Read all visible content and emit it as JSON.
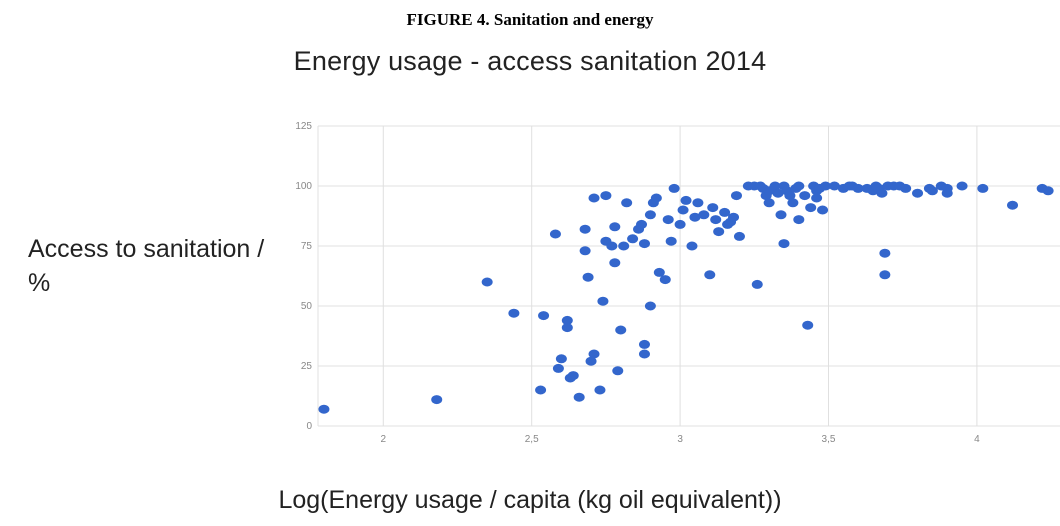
{
  "figure_title": "FIGURE 4. Sanitation and energy",
  "chart_data": {
    "type": "scatter",
    "title": "Energy usage - access sanitation 2014",
    "xlabel": "Log(Energy usage / capita (kg oil equivalent))",
    "ylabel": "Access to sanitation / %",
    "xlim": [
      1.78,
      4.28
    ],
    "ylim": [
      0,
      125
    ],
    "xticks": [
      2,
      2.5,
      3,
      3.5,
      4
    ],
    "xtick_labels": [
      "2",
      "2,5",
      "3",
      "3,5",
      "4"
    ],
    "yticks": [
      0,
      25,
      50,
      75,
      100,
      125
    ],
    "ytick_labels": [
      "0",
      "25",
      "50",
      "75",
      "100",
      "125"
    ],
    "grid": true,
    "legend": "none",
    "point_color": "#3366cc",
    "points": [
      [
        1.8,
        7
      ],
      [
        2.18,
        11
      ],
      [
        2.35,
        60
      ],
      [
        2.44,
        47
      ],
      [
        2.53,
        15
      ],
      [
        2.54,
        46
      ],
      [
        2.58,
        80
      ],
      [
        2.59,
        24
      ],
      [
        2.6,
        28
      ],
      [
        2.62,
        44
      ],
      [
        2.62,
        41
      ],
      [
        2.63,
        20
      ],
      [
        2.64,
        21
      ],
      [
        2.66,
        12
      ],
      [
        2.68,
        82
      ],
      [
        2.68,
        73
      ],
      [
        2.69,
        62
      ],
      [
        2.7,
        27
      ],
      [
        2.71,
        30
      ],
      [
        2.71,
        95
      ],
      [
        2.73,
        15
      ],
      [
        2.74,
        52
      ],
      [
        2.75,
        96
      ],
      [
        2.75,
        77
      ],
      [
        2.77,
        75
      ],
      [
        2.78,
        83
      ],
      [
        2.78,
        68
      ],
      [
        2.79,
        23
      ],
      [
        2.8,
        40
      ],
      [
        2.81,
        75
      ],
      [
        2.82,
        93
      ],
      [
        2.84,
        78
      ],
      [
        2.86,
        82
      ],
      [
        2.87,
        84
      ],
      [
        2.88,
        76
      ],
      [
        2.88,
        34
      ],
      [
        2.88,
        30
      ],
      [
        2.9,
        50
      ],
      [
        2.9,
        88
      ],
      [
        2.91,
        93
      ],
      [
        2.92,
        95
      ],
      [
        2.93,
        64
      ],
      [
        2.95,
        61
      ],
      [
        2.96,
        86
      ],
      [
        2.97,
        77
      ],
      [
        2.98,
        99
      ],
      [
        3.0,
        84
      ],
      [
        3.01,
        90
      ],
      [
        3.02,
        94
      ],
      [
        3.04,
        75
      ],
      [
        3.05,
        87
      ],
      [
        3.06,
        93
      ],
      [
        3.08,
        88
      ],
      [
        3.1,
        63
      ],
      [
        3.11,
        91
      ],
      [
        3.12,
        86
      ],
      [
        3.13,
        81
      ],
      [
        3.15,
        89
      ],
      [
        3.16,
        84
      ],
      [
        3.17,
        85
      ],
      [
        3.18,
        87
      ],
      [
        3.19,
        96
      ],
      [
        3.2,
        79
      ],
      [
        3.23,
        100
      ],
      [
        3.25,
        100
      ],
      [
        3.26,
        59
      ],
      [
        3.27,
        100
      ],
      [
        3.28,
        99
      ],
      [
        3.29,
        96
      ],
      [
        3.3,
        93
      ],
      [
        3.3,
        98
      ],
      [
        3.32,
        100
      ],
      [
        3.33,
        97
      ],
      [
        3.34,
        88
      ],
      [
        3.35,
        100
      ],
      [
        3.35,
        76
      ],
      [
        3.36,
        98
      ],
      [
        3.37,
        96
      ],
      [
        3.38,
        93
      ],
      [
        3.39,
        99
      ],
      [
        3.4,
        100
      ],
      [
        3.4,
        86
      ],
      [
        3.42,
        96
      ],
      [
        3.43,
        42
      ],
      [
        3.44,
        91
      ],
      [
        3.45,
        100
      ],
      [
        3.46,
        95
      ],
      [
        3.46,
        98
      ],
      [
        3.47,
        99
      ],
      [
        3.48,
        90
      ],
      [
        3.49,
        100
      ],
      [
        3.52,
        100
      ],
      [
        3.55,
        99
      ],
      [
        3.57,
        100
      ],
      [
        3.58,
        100
      ],
      [
        3.6,
        99
      ],
      [
        3.63,
        99
      ],
      [
        3.65,
        98
      ],
      [
        3.66,
        100
      ],
      [
        3.67,
        99
      ],
      [
        3.68,
        97
      ],
      [
        3.69,
        63
      ],
      [
        3.69,
        72
      ],
      [
        3.7,
        100
      ],
      [
        3.72,
        100
      ],
      [
        3.74,
        100
      ],
      [
        3.76,
        99
      ],
      [
        3.8,
        97
      ],
      [
        3.84,
        99
      ],
      [
        3.85,
        98
      ],
      [
        3.88,
        100
      ],
      [
        3.9,
        99
      ],
      [
        3.9,
        97
      ],
      [
        3.95,
        100
      ],
      [
        4.02,
        99
      ],
      [
        4.12,
        92
      ],
      [
        4.22,
        99
      ],
      [
        4.24,
        98
      ]
    ]
  }
}
